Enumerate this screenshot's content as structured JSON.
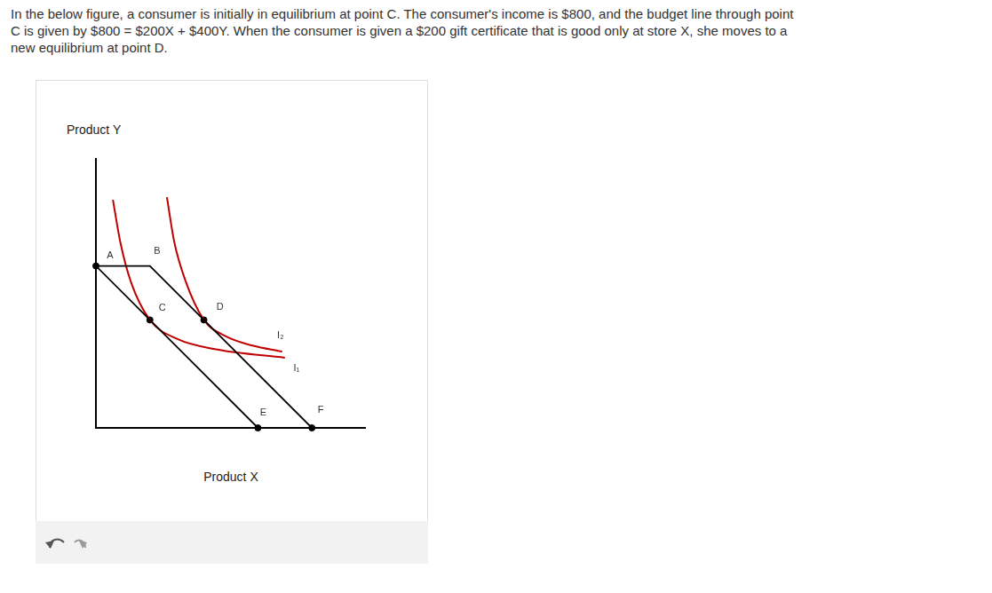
{
  "question": [
    "In the below figure, a consumer is initially in equilibrium at point C. The consumer's income is $800, and the budget line through point",
    "C is given by $800 = $200X + $400Y. When the consumer is given a $200 gift certificate that is good only at store X, she moves to a",
    "new equilibrium at point D."
  ],
  "chart_data": {
    "type": "line",
    "x_label": "Product X",
    "y_label": "Product Y",
    "xlim": [
      0,
      10
    ],
    "ylim": [
      0,
      10
    ],
    "tick_labels": false,
    "grid": false,
    "series": [
      {
        "color": "#000000",
        "line_style": "straight",
        "x": [
          0,
          6
        ],
        "values": [
          6,
          0
        ]
      },
      {
        "color": "#000000",
        "line_style": "straight",
        "x": [
          0,
          2,
          8
        ],
        "values": [
          6,
          6,
          0
        ]
      },
      {
        "name": "I₁",
        "color": "#c00000",
        "line_style": "smooth",
        "x": [
          0.63,
          0.9,
          1.3,
          2.0,
          3.0,
          4.5,
          7.0
        ],
        "values": [
          8.45,
          6.9,
          5.4,
          4.0,
          3.3,
          2.9,
          2.6
        ]
      },
      {
        "name": "I₂",
        "color": "#c00000",
        "line_style": "smooth",
        "x": [
          2.63,
          2.9,
          3.3,
          4.0,
          4.8,
          5.8,
          6.9
        ],
        "values": [
          8.55,
          6.9,
          5.5,
          4.0,
          3.4,
          3.05,
          2.83
        ]
      }
    ],
    "points": [
      {
        "label": "A",
        "x": 0,
        "y": 6,
        "marker": "circle"
      },
      {
        "label": "B",
        "x": 2,
        "y": 6,
        "marker": "none"
      },
      {
        "label": "C",
        "x": 2,
        "y": 4,
        "marker": "circle"
      },
      {
        "label": "D",
        "x": 4,
        "y": 4,
        "marker": "circle"
      },
      {
        "label": "E",
        "x": 6,
        "y": 0,
        "marker": "circle"
      },
      {
        "label": "F",
        "x": 8,
        "y": 0,
        "marker": "circle"
      }
    ]
  }
}
